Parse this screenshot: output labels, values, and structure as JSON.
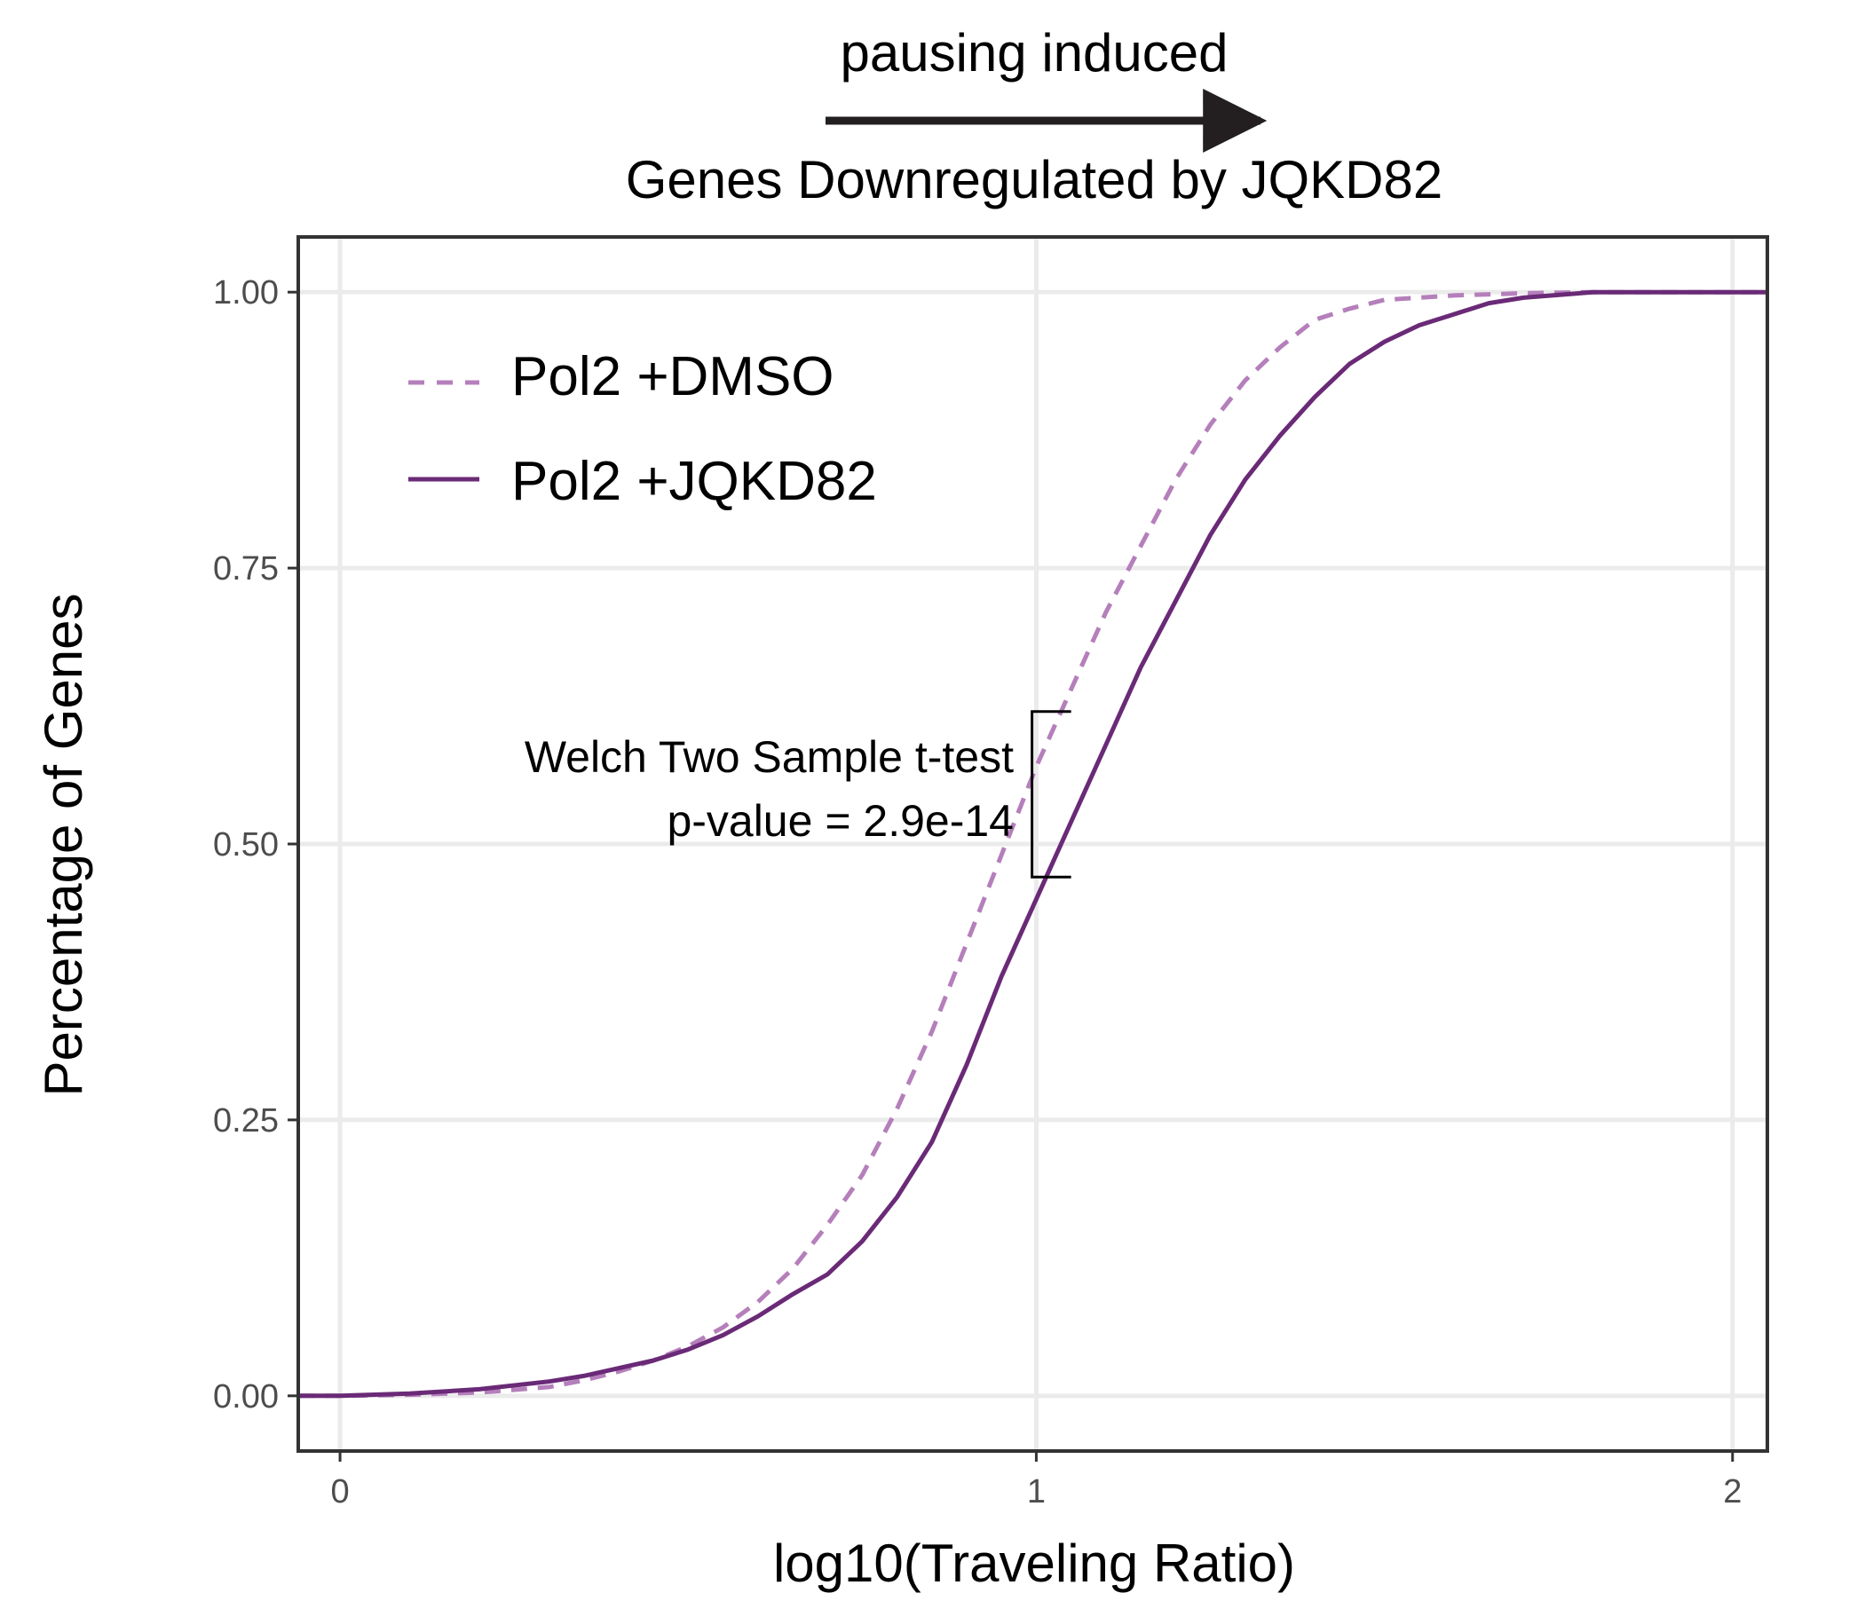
{
  "chart_data": {
    "type": "line",
    "subtype": "ecdf",
    "header_label": "pausing induced",
    "title": "Genes Downregulated by JQKD82",
    "xlabel": "log10(Traveling Ratio)",
    "ylabel": "Percentage of Genes",
    "xlim": [
      -0.06,
      2.05
    ],
    "ylim": [
      -0.05,
      1.05
    ],
    "grid": true,
    "legend_position": "top-left",
    "x_ticks": [
      0,
      1,
      2
    ],
    "x_tick_labels": [
      "0",
      "1",
      "2"
    ],
    "y_ticks": [
      0,
      0.25,
      0.5,
      0.75,
      1
    ],
    "y_tick_labels": [
      "0.00",
      "0.25",
      "0.50",
      "0.75",
      "1.00"
    ],
    "arrow": {
      "direction": "right",
      "meaning": "pausing induced"
    },
    "annotation": {
      "line1": "Welch Two Sample t-test",
      "line2": "p-value = 2.9e-14",
      "bracket_x": 1.05,
      "bracket_y_range": [
        0.47,
        0.62
      ]
    },
    "series": [
      {
        "name": "Pol2 +DMSO",
        "style": "dashed",
        "color": "#b57fbb",
        "x": [
          -0.06,
          0.0,
          0.1,
          0.2,
          0.3,
          0.35,
          0.4,
          0.45,
          0.5,
          0.55,
          0.6,
          0.65,
          0.7,
          0.75,
          0.8,
          0.85,
          0.9,
          0.95,
          1.0,
          1.05,
          1.1,
          1.15,
          1.2,
          1.25,
          1.3,
          1.35,
          1.4,
          1.45,
          1.5,
          1.6,
          1.7,
          1.8,
          2.05
        ],
        "y": [
          0.0,
          0.0,
          0.001,
          0.003,
          0.008,
          0.014,
          0.022,
          0.032,
          0.045,
          0.062,
          0.085,
          0.115,
          0.155,
          0.2,
          0.26,
          0.33,
          0.41,
          0.49,
          0.57,
          0.64,
          0.71,
          0.77,
          0.83,
          0.88,
          0.92,
          0.95,
          0.975,
          0.985,
          0.993,
          0.997,
          0.999,
          1.0,
          1.0
        ]
      },
      {
        "name": "Pol2 +JQKD82",
        "style": "solid",
        "color": "#6a2a77",
        "x": [
          -0.06,
          0.0,
          0.1,
          0.2,
          0.3,
          0.35,
          0.4,
          0.45,
          0.5,
          0.55,
          0.6,
          0.65,
          0.7,
          0.75,
          0.8,
          0.85,
          0.9,
          0.95,
          1.0,
          1.05,
          1.1,
          1.15,
          1.2,
          1.25,
          1.3,
          1.35,
          1.4,
          1.45,
          1.5,
          1.55,
          1.6,
          1.65,
          1.7,
          1.8,
          2.05
        ],
        "y": [
          0.0,
          0.0,
          0.002,
          0.006,
          0.013,
          0.018,
          0.025,
          0.032,
          0.042,
          0.055,
          0.072,
          0.092,
          0.11,
          0.14,
          0.18,
          0.23,
          0.3,
          0.38,
          0.45,
          0.52,
          0.59,
          0.66,
          0.72,
          0.78,
          0.83,
          0.87,
          0.905,
          0.935,
          0.955,
          0.97,
          0.98,
          0.99,
          0.995,
          1.0,
          1.0
        ]
      }
    ]
  }
}
